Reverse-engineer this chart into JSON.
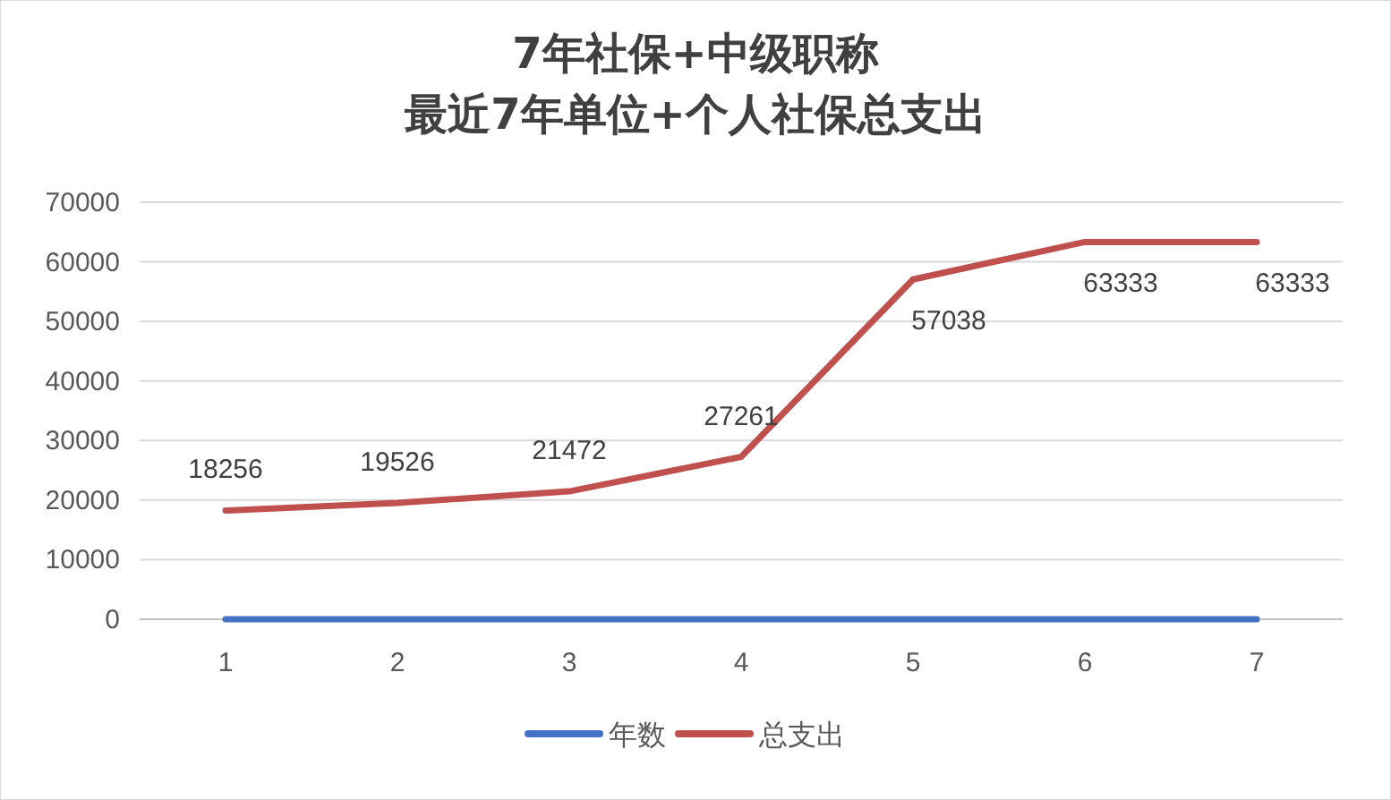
{
  "chart_data": {
    "type": "line",
    "title": "7年社保+中级职称",
    "subtitle": "最近7年单位+个人社保总支出",
    "categories": [
      "1",
      "2",
      "3",
      "4",
      "5",
      "6",
      "7"
    ],
    "series": [
      {
        "name": "年数",
        "color": "#4472c4",
        "values": [
          0,
          0,
          0,
          0,
          0,
          0,
          0
        ]
      },
      {
        "name": "总支出",
        "color": "#c0504d",
        "values": [
          18256,
          19526,
          21472,
          27261,
          57038,
          63333,
          63333
        ],
        "value_labels": [
          "18256",
          "19526",
          "21472",
          "27261",
          "57038",
          "63333",
          "63333"
        ]
      }
    ],
    "ylim": [
      0,
      70000
    ],
    "yticks": [
      0,
      10000,
      20000,
      30000,
      40000,
      50000,
      60000,
      70000
    ],
    "grid": "y",
    "legend": "bottom",
    "marker": "none",
    "line_style": "solid"
  }
}
